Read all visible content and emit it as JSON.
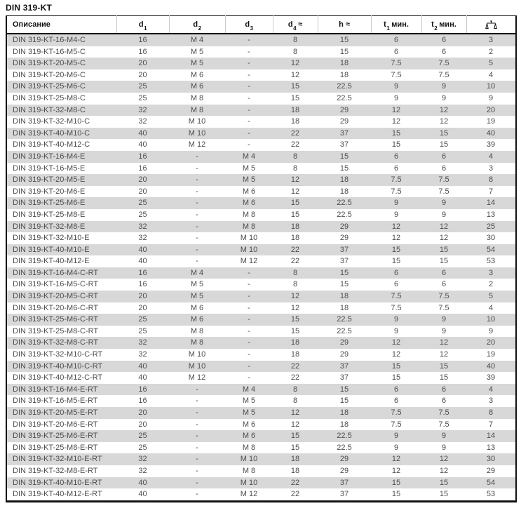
{
  "page": {
    "title": "DIN 319-KT"
  },
  "theme": {
    "page_bg": "#ffffff",
    "stripe": "#d8d8d8",
    "body_text": "#4d4d4d",
    "header_text": "#111111",
    "border_dark": "#111111",
    "separator": "#c9c9c9"
  },
  "table": {
    "columns": [
      {
        "key": "desc",
        "label": "Описание",
        "sub": "",
        "suffix": ""
      },
      {
        "key": "d1",
        "label": "d",
        "sub": "1",
        "suffix": ""
      },
      {
        "key": "d2",
        "label": "d",
        "sub": "2",
        "suffix": ""
      },
      {
        "key": "d3",
        "label": "d",
        "sub": "3",
        "suffix": ""
      },
      {
        "key": "d4",
        "label": "d",
        "sub": "4",
        "suffix": " ≈"
      },
      {
        "key": "h",
        "label": "h",
        "sub": "",
        "suffix": "  ≈"
      },
      {
        "key": "t1",
        "label": "t",
        "sub": "1",
        "suffix": " мин."
      },
      {
        "key": "t2",
        "label": "t",
        "sub": "2",
        "suffix": " мин."
      },
      {
        "key": "weight",
        "label": "",
        "sub": "",
        "suffix": "",
        "icon": "scale-icon"
      }
    ],
    "rows": [
      [
        "DIN 319-KT-16-M4-C",
        "16",
        "M 4",
        "-",
        "8",
        "15",
        "6",
        "6",
        "3"
      ],
      [
        "DIN 319-KT-16-M5-C",
        "16",
        "M 5",
        "-",
        "8",
        "15",
        "6",
        "6",
        "2"
      ],
      [
        "DIN 319-KT-20-M5-C",
        "20",
        "M 5",
        "-",
        "12",
        "18",
        "7.5",
        "7.5",
        "5"
      ],
      [
        "DIN 319-KT-20-M6-C",
        "20",
        "M 6",
        "-",
        "12",
        "18",
        "7.5",
        "7.5",
        "4"
      ],
      [
        "DIN 319-KT-25-M6-C",
        "25",
        "M 6",
        "-",
        "15",
        "22.5",
        "9",
        "9",
        "10"
      ],
      [
        "DIN 319-KT-25-M8-C",
        "25",
        "M 8",
        "-",
        "15",
        "22.5",
        "9",
        "9",
        "9"
      ],
      [
        "DIN 319-KT-32-M8-C",
        "32",
        "M 8",
        "-",
        "18",
        "29",
        "12",
        "12",
        "20"
      ],
      [
        "DIN 319-KT-32-M10-C",
        "32",
        "M 10",
        "-",
        "18",
        "29",
        "12",
        "12",
        "19"
      ],
      [
        "DIN 319-KT-40-M10-C",
        "40",
        "M 10",
        "-",
        "22",
        "37",
        "15",
        "15",
        "40"
      ],
      [
        "DIN 319-KT-40-M12-C",
        "40",
        "M 12",
        "-",
        "22",
        "37",
        "15",
        "15",
        "39"
      ],
      [
        "DIN 319-KT-16-M4-E",
        "16",
        "-",
        "M 4",
        "8",
        "15",
        "6",
        "6",
        "4"
      ],
      [
        "DIN 319-KT-16-M5-E",
        "16",
        "-",
        "M 5",
        "8",
        "15",
        "6",
        "6",
        "3"
      ],
      [
        "DIN 319-KT-20-M5-E",
        "20",
        "-",
        "M 5",
        "12",
        "18",
        "7.5",
        "7.5",
        "8"
      ],
      [
        "DIN 319-KT-20-M6-E",
        "20",
        "-",
        "M 6",
        "12",
        "18",
        "7.5",
        "7.5",
        "7"
      ],
      [
        "DIN 319-KT-25-M6-E",
        "25",
        "-",
        "M 6",
        "15",
        "22.5",
        "9",
        "9",
        "14"
      ],
      [
        "DIN 319-KT-25-M8-E",
        "25",
        "-",
        "M 8",
        "15",
        "22.5",
        "9",
        "9",
        "13"
      ],
      [
        "DIN 319-KT-32-M8-E",
        "32",
        "-",
        "M 8",
        "18",
        "29",
        "12",
        "12",
        "25"
      ],
      [
        "DIN 319-KT-32-M10-E",
        "32",
        "-",
        "M 10",
        "18",
        "29",
        "12",
        "12",
        "30"
      ],
      [
        "DIN 319-KT-40-M10-E",
        "40",
        "-",
        "M 10",
        "22",
        "37",
        "15",
        "15",
        "54"
      ],
      [
        "DIN 319-KT-40-M12-E",
        "40",
        "-",
        "M 12",
        "22",
        "37",
        "15",
        "15",
        "53"
      ],
      [
        "DIN 319-KT-16-M4-C-RT",
        "16",
        "M 4",
        "-",
        "8",
        "15",
        "6",
        "6",
        "3"
      ],
      [
        "DIN 319-KT-16-M5-C-RT",
        "16",
        "M 5",
        "-",
        "8",
        "15",
        "6",
        "6",
        "2"
      ],
      [
        "DIN 319-KT-20-M5-C-RT",
        "20",
        "M 5",
        "-",
        "12",
        "18",
        "7.5",
        "7.5",
        "5"
      ],
      [
        "DIN 319-KT-20-M6-C-RT",
        "20",
        "M 6",
        "-",
        "12",
        "18",
        "7.5",
        "7.5",
        "4"
      ],
      [
        "DIN 319-KT-25-M6-C-RT",
        "25",
        "M 6",
        "-",
        "15",
        "22.5",
        "9",
        "9",
        "10"
      ],
      [
        "DIN 319-KT-25-M8-C-RT",
        "25",
        "M 8",
        "-",
        "15",
        "22.5",
        "9",
        "9",
        "9"
      ],
      [
        "DIN 319-KT-32-M8-C-RT",
        "32",
        "M 8",
        "-",
        "18",
        "29",
        "12",
        "12",
        "20"
      ],
      [
        "DIN 319-KT-32-M10-C-RT",
        "32",
        "M 10",
        "-",
        "18",
        "29",
        "12",
        "12",
        "19"
      ],
      [
        "DIN 319-KT-40-M10-C-RT",
        "40",
        "M 10",
        "-",
        "22",
        "37",
        "15",
        "15",
        "40"
      ],
      [
        "DIN 319-KT-40-M12-C-RT",
        "40",
        "M 12",
        "-",
        "22",
        "37",
        "15",
        "15",
        "39"
      ],
      [
        "DIN 319-KT-16-M4-E-RT",
        "16",
        "-",
        "M 4",
        "8",
        "15",
        "6",
        "6",
        "4"
      ],
      [
        "DIN 319-KT-16-M5-E-RT",
        "16",
        "-",
        "M 5",
        "8",
        "15",
        "6",
        "6",
        "3"
      ],
      [
        "DIN 319-KT-20-M5-E-RT",
        "20",
        "-",
        "M 5",
        "12",
        "18",
        "7.5",
        "7.5",
        "8"
      ],
      [
        "DIN 319-KT-20-M6-E-RT",
        "20",
        "-",
        "M 6",
        "12",
        "18",
        "7.5",
        "7.5",
        "7"
      ],
      [
        "DIN 319-KT-25-M6-E-RT",
        "25",
        "-",
        "M 6",
        "15",
        "22.5",
        "9",
        "9",
        "14"
      ],
      [
        "DIN 319-KT-25-M8-E-RT",
        "25",
        "-",
        "M 8",
        "15",
        "22.5",
        "9",
        "9",
        "13"
      ],
      [
        "DIN 319-KT-32-M10-E-RT",
        "32",
        "-",
        "M 10",
        "18",
        "29",
        "12",
        "12",
        "30"
      ],
      [
        "DIN 319-KT-32-M8-E-RT",
        "32",
        "-",
        "M 8",
        "18",
        "29",
        "12",
        "12",
        "29"
      ],
      [
        "DIN 319-KT-40-M10-E-RT",
        "40",
        "-",
        "M 10",
        "22",
        "37",
        "15",
        "15",
        "54"
      ],
      [
        "DIN 319-KT-40-M12-E-RT",
        "40",
        "-",
        "M 12",
        "22",
        "37",
        "15",
        "15",
        "53"
      ]
    ]
  }
}
